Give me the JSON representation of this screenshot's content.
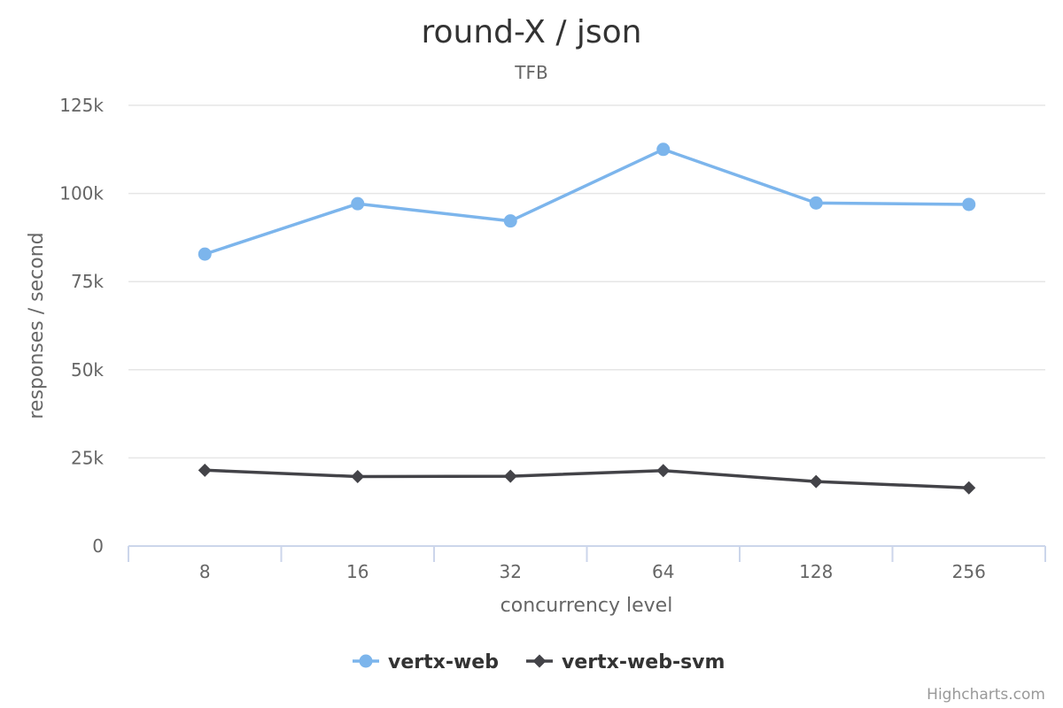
{
  "chart_data": {
    "type": "line",
    "title": "round-X / json",
    "subtitle": "TFB",
    "xlabel": "concurrency level",
    "ylabel": "responses / second",
    "categories": [
      "8",
      "16",
      "32",
      "64",
      "128",
      "256"
    ],
    "ylim": [
      0,
      125000
    ],
    "yticks": [
      0,
      25000,
      50000,
      75000,
      100000,
      125000
    ],
    "ytick_labels": [
      "0",
      "25k",
      "50k",
      "75k",
      "100k",
      "125k"
    ],
    "grid": true,
    "legend_position": "bottom-center",
    "series": [
      {
        "name": "vertx-web",
        "color": "#7cb5ec",
        "marker": "circle",
        "values": [
          82800,
          97100,
          92200,
          112500,
          97300,
          96900
        ]
      },
      {
        "name": "vertx-web-svm",
        "color": "#434348",
        "marker": "diamond",
        "values": [
          21500,
          19700,
          19800,
          21400,
          18300,
          16500
        ]
      }
    ]
  },
  "credits": "Highcharts.com"
}
